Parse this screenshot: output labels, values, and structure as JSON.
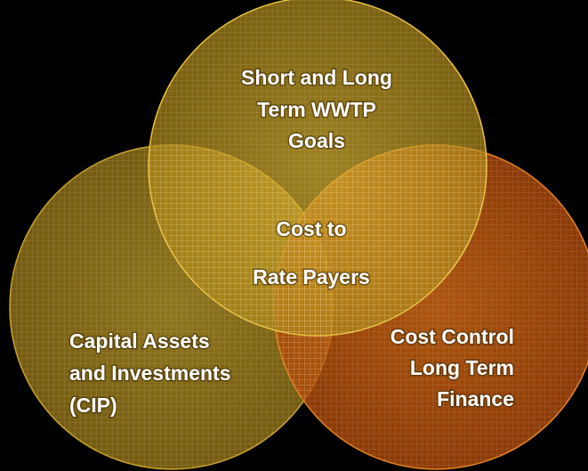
{
  "circles": [
    {
      "lines": [
        "Short and Long",
        "Term WWTP",
        "Goals"
      ]
    },
    {
      "lines": [
        "Capital Assets",
        "and Investments",
        "(CIP)"
      ]
    },
    {
      "lines": [
        "Cost Control",
        "Long Term",
        "Finance"
      ]
    }
  ],
  "center": {
    "lines": [
      "Cost to",
      "Rate Payers"
    ]
  }
}
